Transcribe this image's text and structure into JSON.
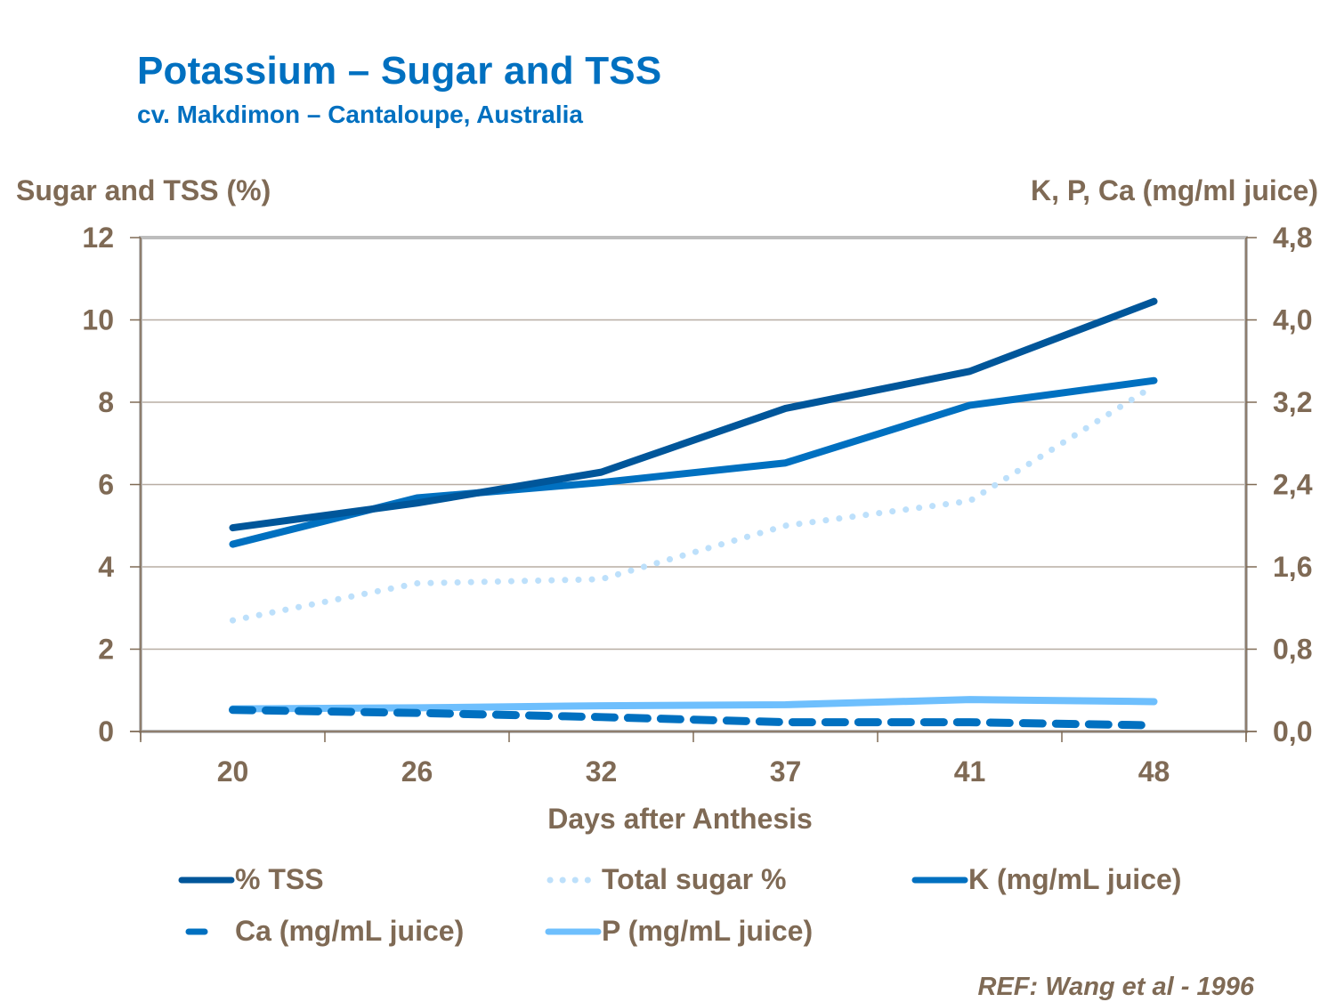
{
  "header": {
    "title": "Potassium – Sugar and TSS",
    "subtitle": "cv. Makdimon – Cantaloupe, Australia"
  },
  "reference": "REF: Wang et al - 1996",
  "chart_data": {
    "type": "line",
    "title": "Potassium – Sugar and TSS",
    "subtitle": "cv. Makdimon – Cantaloupe, Australia",
    "xlabel": "Days after Anthesis",
    "ylabel": "Sugar and TSS (%)",
    "y2label": "K, P, Ca (mg/ml juice)",
    "categories": [
      "20",
      "26",
      "32",
      "37",
      "41",
      "48"
    ],
    "ylim": [
      0,
      12
    ],
    "y2lim": [
      0,
      4.8
    ],
    "yticks": [
      "0",
      "2",
      "4",
      "6",
      "8",
      "10",
      "12"
    ],
    "y2ticks": [
      "0,0",
      "0,8",
      "1,6",
      "2,4",
      "3,2",
      "4,0",
      "4,8"
    ],
    "grid": true,
    "legend_position": "bottom",
    "series": [
      {
        "name": "% TSS",
        "axis": "left",
        "style": "solid",
        "color": "#00569a",
        "values": [
          4.95,
          5.55,
          6.3,
          7.85,
          8.75,
          10.45
        ]
      },
      {
        "name": "Total sugar %",
        "axis": "left",
        "style": "dotted",
        "color": "#bde0fb",
        "values": [
          2.7,
          3.6,
          3.7,
          5.0,
          5.6,
          8.4
        ]
      },
      {
        "name": "K (mg/mL juice)",
        "axis": "right",
        "style": "solid",
        "color": "#0070c0",
        "values": [
          1.82,
          2.27,
          2.42,
          2.61,
          3.17,
          3.41
        ]
      },
      {
        "name": "Ca (mg/mL juice)",
        "axis": "right",
        "style": "dashed",
        "color": "#0070c0",
        "values": [
          0.21,
          0.18,
          0.14,
          0.09,
          0.09,
          0.06
        ]
      },
      {
        "name": "P (mg/mL juice)",
        "axis": "right",
        "style": "solid",
        "color": "#6ebffd",
        "values": [
          0.22,
          0.23,
          0.25,
          0.26,
          0.31,
          0.29
        ]
      }
    ]
  }
}
